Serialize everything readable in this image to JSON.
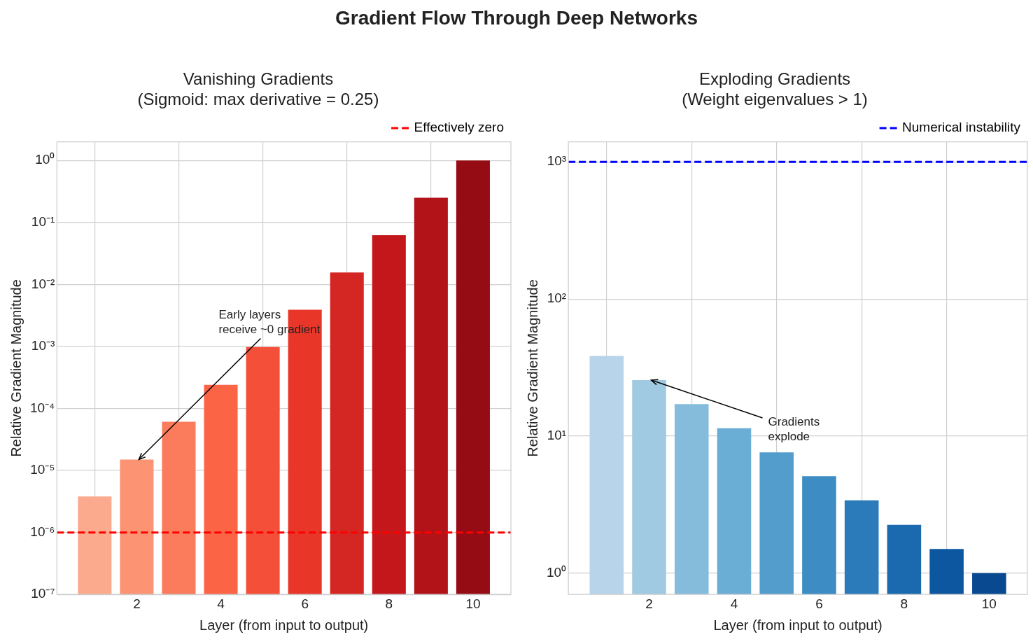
{
  "chart_data": [
    {
      "type": "bar",
      "title": "Vanishing Gradients\n(Sigmoid: max derivative = 0.25)",
      "xlabel": "Layer (from input to output)",
      "ylabel": "Relative Gradient Magnitude",
      "log": "y",
      "grid": true,
      "legend": "top right",
      "x": [
        1,
        2,
        3,
        4,
        5,
        6,
        7,
        8,
        9,
        10
      ],
      "values": [
        3.8e-06,
        1.5e-05,
        6.1e-05,
        0.00024,
        0.00098,
        0.0039,
        0.0156,
        0.0625,
        0.25,
        1
      ],
      "colors": [
        "#fcaa8d",
        "#fc9373",
        "#fb7c5c",
        "#fb6546",
        "#f44f39",
        "#e83629",
        "#d42723",
        "#c3171c",
        "#b11318",
        "#960c14"
      ],
      "xlim": [
        0.1,
        10.9
      ],
      "xticks": [
        2,
        4,
        6,
        8,
        10
      ],
      "ylim": [
        1e-07,
        2
      ],
      "yticks": [
        {
          "value": 1e-07,
          "label": "10⁻⁷"
        },
        {
          "value": 1e-06,
          "label": "10⁻⁶"
        },
        {
          "value": 1e-05,
          "label": "10⁻⁵"
        },
        {
          "value": 0.0001,
          "label": "10⁻⁴"
        },
        {
          "value": 0.001,
          "label": "10⁻³"
        },
        {
          "value": 0.01,
          "label": "10⁻²"
        },
        {
          "value": 0.1,
          "label": "10⁻¹"
        },
        {
          "value": 1,
          "label": "10⁰"
        }
      ],
      "ref_lines": [
        {
          "axis": "y",
          "value": 1e-06,
          "label": "Effectively zero",
          "color": "#ff0000",
          "line_style": "dashed"
        }
      ],
      "annotations": [
        "Gradient Flow Through Deep Networks",
        {
          "text": "Early layers\nreceive ~0 gradient",
          "x": 2,
          "y": 1.5e-05
        }
      ]
    },
    {
      "type": "bar",
      "title": "Exploding Gradients\n(Weight eigenvalues > 1)",
      "xlabel": "Layer (from input to output)",
      "ylabel": "Relative Gradient Magnitude",
      "log": "y",
      "grid": true,
      "legend": "top right",
      "x": [
        1,
        2,
        3,
        4,
        5,
        6,
        7,
        8,
        9,
        10
      ],
      "values": [
        38.4,
        25.6,
        17.1,
        11.4,
        7.6,
        5.1,
        3.4,
        2.25,
        1.5,
        1
      ],
      "colors": [
        "#b7d4ea",
        "#a0cae1",
        "#85bcdc",
        "#6aaed6",
        "#529dcc",
        "#3d8dc4",
        "#2b7bba",
        "#1b69af",
        "#0d57a1",
        "#084990"
      ],
      "xlim": [
        0.1,
        10.9
      ],
      "xticks": [
        2,
        4,
        6,
        8,
        10
      ],
      "ylim": [
        0.7,
        1400
      ],
      "yticks": [
        {
          "value": 1,
          "label": "10⁰"
        },
        {
          "value": 10,
          "label": "10¹"
        },
        {
          "value": 100,
          "label": "10²"
        },
        {
          "value": 1000,
          "label": "10³"
        }
      ],
      "ref_lines": [
        {
          "axis": "y",
          "value": 1000,
          "label": "Numerical instability",
          "color": "#0000ff",
          "line_style": "dashed"
        }
      ],
      "annotations": [
        {
          "text": "Gradients\nexplode",
          "x": 2,
          "y": 25.6
        }
      ]
    }
  ]
}
